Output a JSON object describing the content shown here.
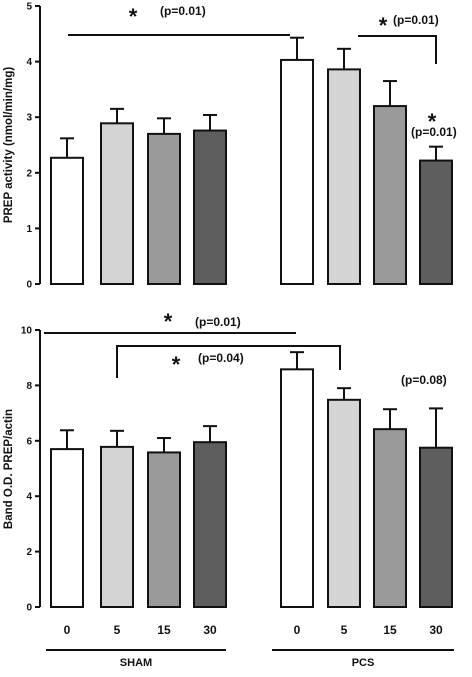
{
  "chart_data": [
    {
      "type": "bar",
      "ylabel": "PREP activity (nmol/min/mg)",
      "ylim": [
        0,
        5
      ],
      "yticks": [
        "0",
        "1",
        "2",
        "3",
        "4",
        "5"
      ],
      "categories": [
        "0",
        "5",
        "15",
        "30",
        "0",
        "5",
        "15",
        "30"
      ],
      "values": [
        2.27,
        2.89,
        2.7,
        2.76,
        4.03,
        3.86,
        3.2,
        2.22
      ],
      "errors": [
        0.35,
        0.26,
        0.28,
        0.28,
        0.4,
        0.37,
        0.45,
        0.25
      ],
      "bar_colors": [
        "#ffffff",
        "#d4d4d4",
        "#9a9a9a",
        "#5e5e5e",
        "#ffffff",
        "#d4d4d4",
        "#9a9a9a",
        "#5e5e5e"
      ],
      "annotations": [
        {
          "star": "*",
          "text": "(p=0.01)"
        },
        {
          "star": "*",
          "text": "(p=0.01)"
        },
        {
          "star": "*",
          "text": "(p=0.01)"
        }
      ]
    },
    {
      "type": "bar",
      "ylabel": "Band O.D. PREP/actin",
      "ylim": [
        0,
        10
      ],
      "yticks": [
        "0",
        "2",
        "4",
        "6",
        "8",
        "10"
      ],
      "categories": [
        "0",
        "5",
        "15",
        "30",
        "0",
        "5",
        "15",
        "30"
      ],
      "values": [
        5.7,
        5.78,
        5.58,
        5.95,
        8.58,
        7.48,
        6.42,
        5.75
      ],
      "errors": [
        0.68,
        0.58,
        0.52,
        0.58,
        0.62,
        0.42,
        0.72,
        1.42
      ],
      "bar_colors": [
        "#ffffff",
        "#d4d4d4",
        "#9a9a9a",
        "#5e5e5e",
        "#ffffff",
        "#d4d4d4",
        "#9a9a9a",
        "#5e5e5e"
      ],
      "annotations": [
        {
          "star": "*",
          "text": "(p=0.01)"
        },
        {
          "star": "*",
          "text": "(p=0.04)"
        },
        {
          "star": "",
          "text": "(p=0.08)"
        }
      ]
    }
  ],
  "groups": [
    "SHAM",
    "PCS"
  ]
}
